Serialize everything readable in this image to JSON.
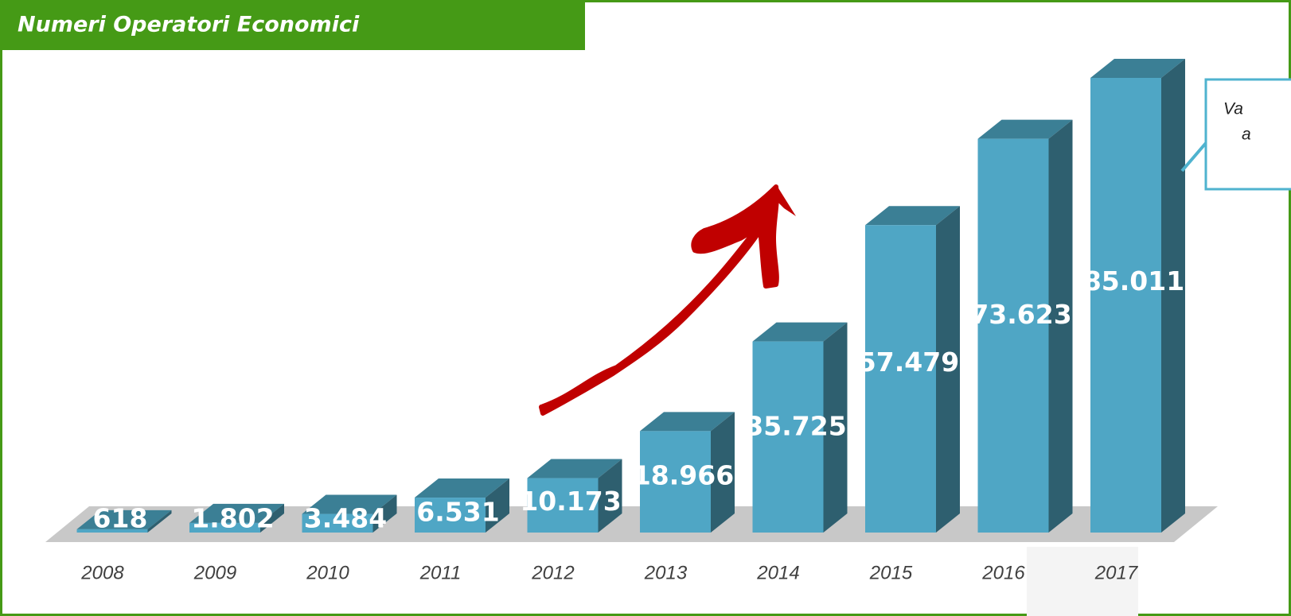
{
  "chart_data": {
    "type": "bar",
    "title": "Numeri Operatori Economici",
    "categories": [
      "2008",
      "2009",
      "2010",
      "2011",
      "2012",
      "2013",
      "2014",
      "2015",
      "2016",
      "2017"
    ],
    "values": [
      618,
      1802,
      3484,
      6531,
      10173,
      18966,
      35725,
      57479,
      73623,
      85011
    ],
    "value_labels": [
      "618",
      "1.802",
      "3.484",
      "6.531",
      "10.173",
      "18.966",
      "35.725",
      "57.479",
      "73.623",
      "85.011"
    ],
    "color": "#4fa6c5",
    "callout": [
      "Va",
      "a"
    ]
  }
}
